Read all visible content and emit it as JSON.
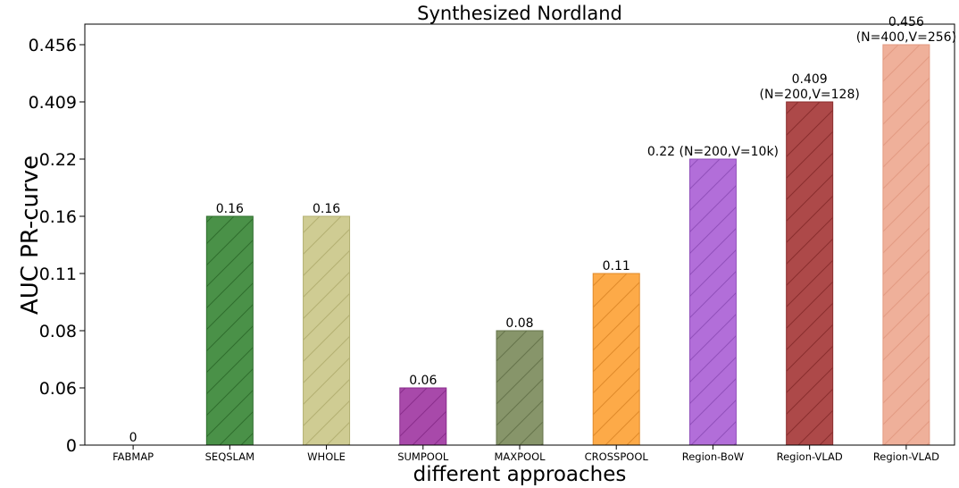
{
  "chart_data": {
    "type": "bar",
    "title": "Synthesized Nordland",
    "xlabel": "different approaches",
    "ylabel": "AUC PR-curve",
    "categories": [
      "FABMAP",
      "SEQSLAM",
      "WHOLE",
      "SUMPOOL",
      "MAXPOOL",
      "CROSSPOOL",
      "Region-BoW",
      "Region-VLAD",
      "Region-VLAD"
    ],
    "values": [
      0,
      0.16,
      0.16,
      0.06,
      0.08,
      0.11,
      0.22,
      0.409,
      0.456
    ],
    "y_ticks": [
      "0",
      "0.06",
      "0.08",
      "0.11",
      "0.16",
      "0.22",
      "0.409",
      "0.456"
    ],
    "y_scale": "categorical (ticks evenly spaced, one per distinct value)",
    "data_labels": [
      [
        "0"
      ],
      [
        "0.16"
      ],
      [
        "0.16"
      ],
      [
        "0.06"
      ],
      [
        "0.08"
      ],
      [
        "0.11"
      ],
      [
        "0.22 (N=200,V=10k)"
      ],
      [
        "0.409",
        "(N=200,V=128)"
      ],
      [
        "0.456",
        "(N=400,V=256)"
      ]
    ],
    "colors": [
      "#1f77b4",
      "#4a9148",
      "#cfcc93",
      "#a849aa",
      "#87956a",
      "#fdaa48",
      "#b26ed9",
      "#ad4949",
      "#efb09a"
    ],
    "edge_colors": [
      "#1f77b4",
      "#2f6e2d",
      "#b3b072",
      "#8a2d8c",
      "#66744b",
      "#e08a2a",
      "#9150bb",
      "#8a2d2d",
      "#e39a82"
    ],
    "hatch": "diagonal",
    "grid": false,
    "legend": "none"
  }
}
